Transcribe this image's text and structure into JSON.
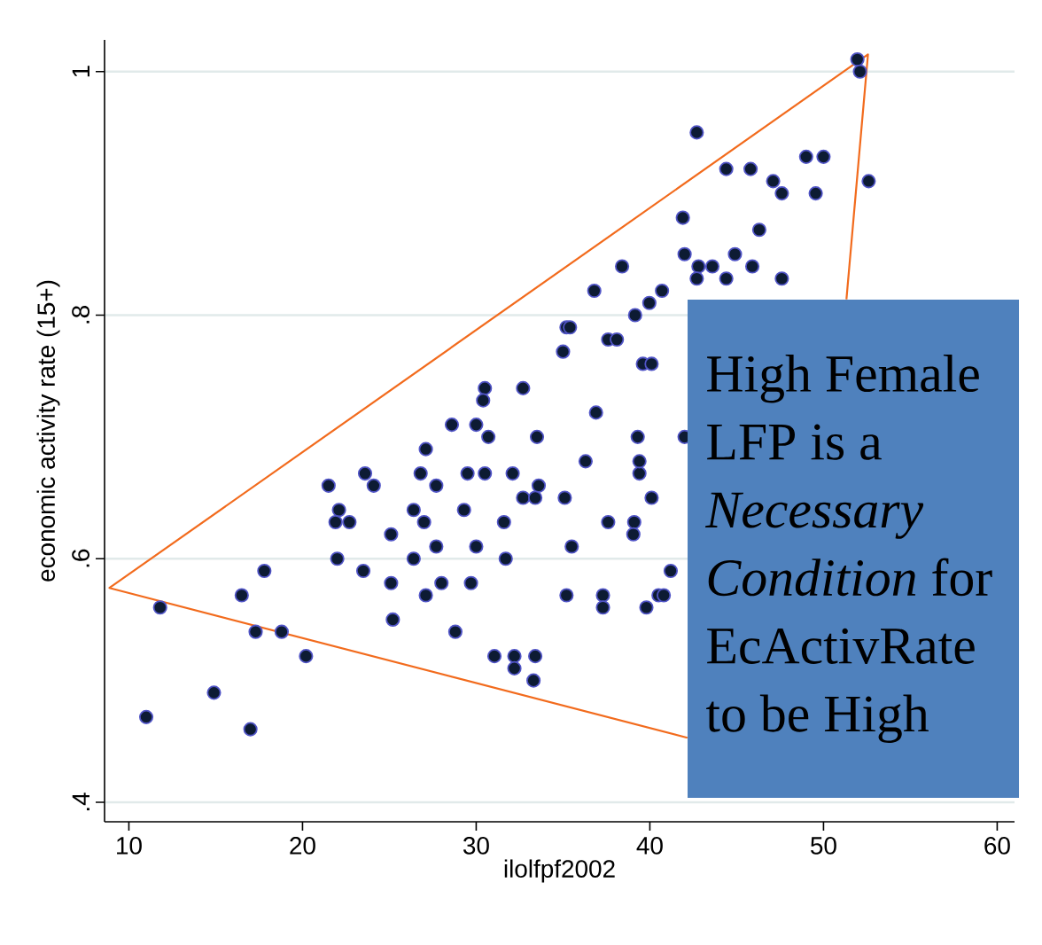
{
  "chart_data": {
    "type": "scatter",
    "xlabel": "ilolfpf2002",
    "ylabel": "economic activity rate (15+)",
    "xlim": [
      8.6,
      61
    ],
    "ylim": [
      0.384,
      1.026
    ],
    "xticks": [
      10,
      20,
      30,
      40,
      50,
      60
    ],
    "yticks": [
      {
        "value": 0.4,
        "label": ".4"
      },
      {
        "value": 0.6,
        "label": ".6"
      },
      {
        "value": 0.8,
        "label": ".8"
      },
      {
        "value": 1,
        "label": "1"
      }
    ],
    "grid": "y",
    "marker": "circle",
    "annotations": [
      "High Female LFP is a *Necessary Condition* for EcActivRate to be High"
    ],
    "series": [
      {
        "color": "#0d1b33",
        "x": [
          51.95,
          52.1,
          42.7,
          52.6,
          49.0,
          50.0,
          49.55,
          44.4,
          45.8,
          47.1,
          47.6,
          46.3,
          41.9,
          42.0,
          38.4,
          42.8,
          42.7,
          43.6,
          44.9,
          45.9,
          44.4,
          47.6,
          36.8,
          40.7,
          39.97,
          39.15,
          35.2,
          35.4,
          37.6,
          38.1,
          35.0,
          39.6,
          40.1,
          30.5,
          32.7,
          30.4,
          36.9,
          28.6,
          30.0,
          27.1,
          30.7,
          33.5,
          39.3,
          42.0,
          23.6,
          26.8,
          29.5,
          30.5,
          32.1,
          39.4,
          39.4,
          36.3,
          24.1,
          21.5,
          27.7,
          33.6,
          22.1,
          26.4,
          29.3,
          21.9,
          22.7,
          27.0,
          31.6,
          37.6,
          39.1,
          32.7,
          33.4,
          35.1,
          40.1,
          25.1,
          39.05,
          27.7,
          30.0,
          35.5,
          22.0,
          26.4,
          31.7,
          17.8,
          23.5,
          41.2,
          25.1,
          28.0,
          29.7,
          16.5,
          27.1,
          35.2,
          37.3,
          40.5,
          40.8,
          11.8,
          37.3,
          39.8,
          25.2,
          17.3,
          18.8,
          28.8,
          20.2,
          31.05,
          32.2,
          33.4,
          32.2,
          33.3,
          14.9,
          11.0,
          17.0
        ],
        "values": [
          1.01,
          1.0,
          0.95,
          0.91,
          0.93,
          0.93,
          0.9,
          0.92,
          0.92,
          0.91,
          0.9,
          0.87,
          0.88,
          0.85,
          0.84,
          0.84,
          0.83,
          0.84,
          0.85,
          0.84,
          0.83,
          0.83,
          0.82,
          0.82,
          0.81,
          0.8,
          0.79,
          0.79,
          0.78,
          0.78,
          0.77,
          0.76,
          0.76,
          0.74,
          0.74,
          0.73,
          0.72,
          0.71,
          0.71,
          0.69,
          0.7,
          0.7,
          0.7,
          0.7,
          0.67,
          0.67,
          0.67,
          0.67,
          0.67,
          0.67,
          0.68,
          0.68,
          0.66,
          0.66,
          0.66,
          0.66,
          0.64,
          0.64,
          0.64,
          0.63,
          0.63,
          0.63,
          0.63,
          0.63,
          0.63,
          0.65,
          0.65,
          0.65,
          0.65,
          0.62,
          0.62,
          0.61,
          0.61,
          0.61,
          0.6,
          0.6,
          0.6,
          0.59,
          0.59,
          0.59,
          0.58,
          0.58,
          0.58,
          0.57,
          0.57,
          0.57,
          0.57,
          0.57,
          0.57,
          0.56,
          0.56,
          0.56,
          0.55,
          0.54,
          0.54,
          0.54,
          0.52,
          0.52,
          0.52,
          0.52,
          0.51,
          0.5,
          0.49,
          0.47,
          0.46
        ]
      },
      {
        "type": "line",
        "color": "#f26b1d",
        "marker": "none",
        "x": [
          42.16,
          8.88,
          52.56,
          51.32
        ],
        "values": [
          0.453,
          0.576,
          1.014,
          0.813
        ]
      }
    ]
  }
}
